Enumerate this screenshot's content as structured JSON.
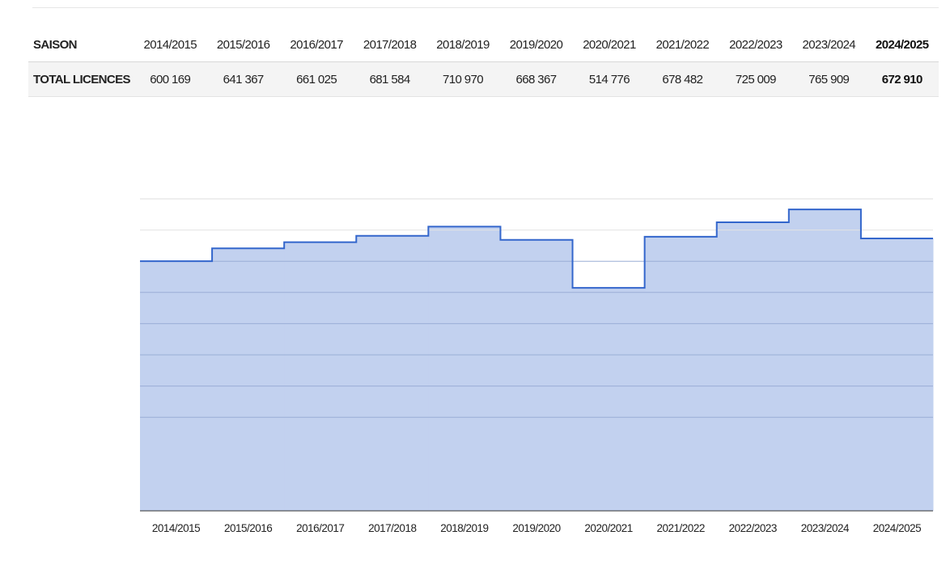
{
  "table": {
    "header_label": "SAISON",
    "total_label": "TOTAL LICENCES",
    "seasons": [
      "2014/2015",
      "2015/2016",
      "2016/2017",
      "2017/2018",
      "2018/2019",
      "2019/2020",
      "2020/2021",
      "2021/2022",
      "2022/2023",
      "2023/2024",
      "2024/2025"
    ],
    "totals": [
      "600 169",
      "641 367",
      "661 025",
      "681 584",
      "710 970",
      "668 367",
      "514 776",
      "678 482",
      "725 009",
      "765 909",
      "672 910"
    ]
  },
  "chart_data": {
    "type": "area",
    "step": true,
    "categories": [
      "2014/2015",
      "2015/2016",
      "2016/2017",
      "2017/2018",
      "2018/2019",
      "2019/2020",
      "2020/2021",
      "2021/2022",
      "2022/2023",
      "2023/2024",
      "2024/2025"
    ],
    "values": [
      600169,
      641367,
      661025,
      681584,
      710970,
      668367,
      514776,
      678482,
      725009,
      765909,
      672910
    ],
    "ylim": [
      -200000,
      800000
    ],
    "grid": true,
    "line_color": "#3366cc",
    "fill_color": "#c2d1ef"
  }
}
